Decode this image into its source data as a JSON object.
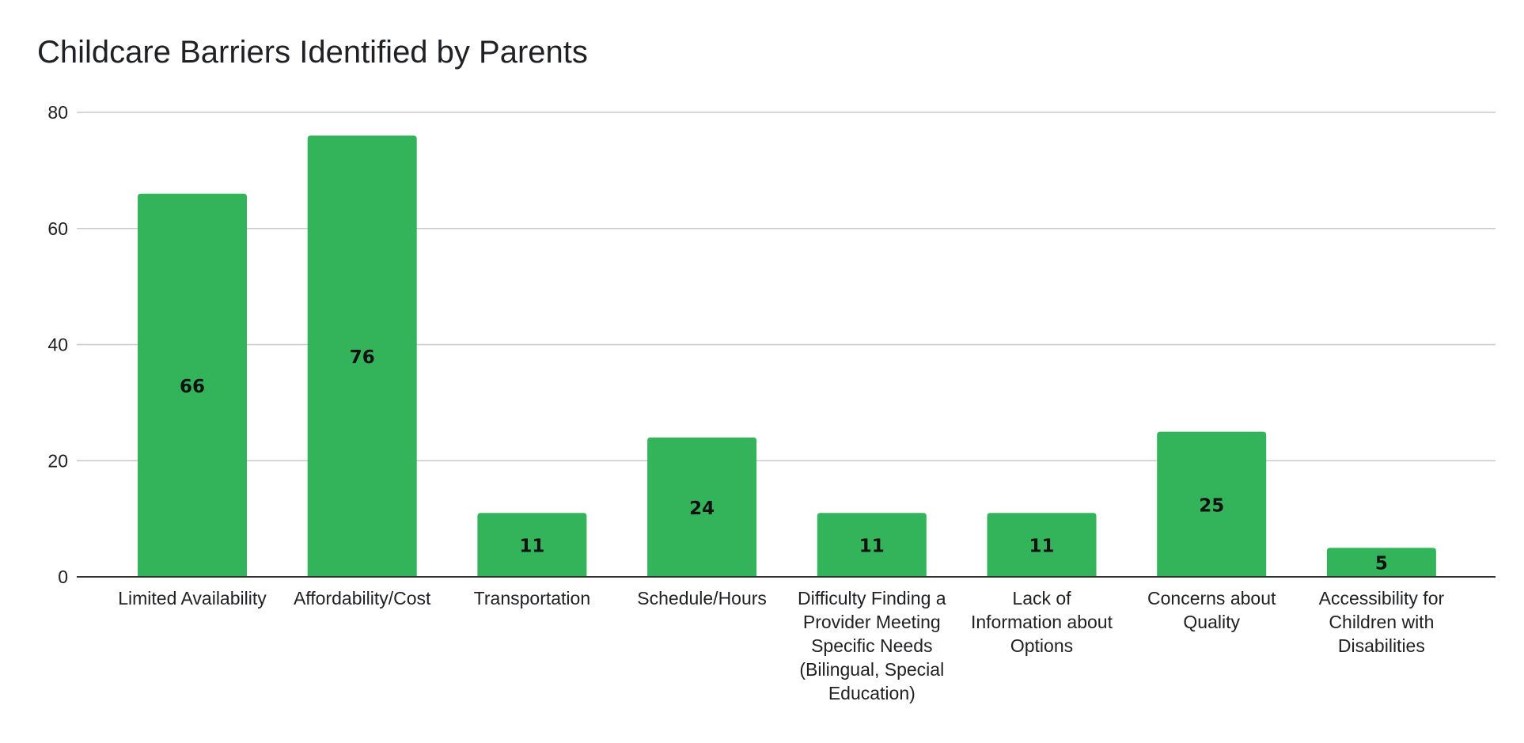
{
  "chart_data": {
    "type": "bar",
    "title": "Childcare Barriers Identified by Parents",
    "xlabel": "",
    "ylabel": "",
    "ylim": [
      0,
      80
    ],
    "yticks": [
      0,
      20,
      40,
      60,
      80
    ],
    "grid": true,
    "legend": "none",
    "bar_color": "#34b45a",
    "categories": [
      [
        "Limited Availability"
      ],
      [
        "Affordability/Cost"
      ],
      [
        "Transportation"
      ],
      [
        "Schedule/Hours"
      ],
      [
        "Difficulty Finding a",
        "Provider Meeting",
        "Specific Needs",
        "(Bilingual, Special",
        "Education)"
      ],
      [
        "Lack of",
        "Information about",
        "Options"
      ],
      [
        "Concerns about",
        "Quality"
      ],
      [
        "Accessibility for",
        "Children with",
        "Disabilities"
      ]
    ],
    "values": [
      66,
      76,
      11,
      24,
      11,
      11,
      25,
      5
    ]
  }
}
